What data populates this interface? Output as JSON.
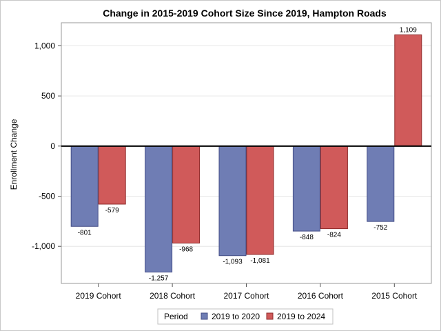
{
  "chart_data": {
    "type": "bar",
    "title": "Change in 2015-2019 Cohort Size Since 2019, Hampton Roads",
    "xlabel": "",
    "ylabel": "Enrollment Change",
    "categories": [
      "2019 Cohort",
      "2018 Cohort",
      "2017 Cohort",
      "2016 Cohort",
      "2015 Cohort"
    ],
    "series": [
      {
        "name": "2019 to 2020",
        "values": [
          -801,
          -1257,
          -1093,
          -848,
          -752
        ],
        "labels": [
          "-801",
          "-1,257",
          "-1,093",
          "-848",
          "-752"
        ],
        "color": "#6f7db4",
        "stroke": "#434d86"
      },
      {
        "name": "2019 to 2024",
        "values": [
          -579,
          -968,
          -1081,
          -824,
          1109
        ],
        "labels": [
          "-579",
          "-968",
          "-1,081",
          "-824",
          "1,109"
        ],
        "color": "#d05a5a",
        "stroke": "#8e2a2a"
      }
    ],
    "ylim": [
      -1370,
      1230
    ],
    "yticks": [
      -1000,
      -500,
      0,
      500,
      1000
    ],
    "ytick_labels": [
      "-1,000",
      "-500",
      "0",
      "500",
      "1,000"
    ],
    "grid": true,
    "legend": {
      "title": "Period",
      "placement": "bottom-center"
    }
  }
}
